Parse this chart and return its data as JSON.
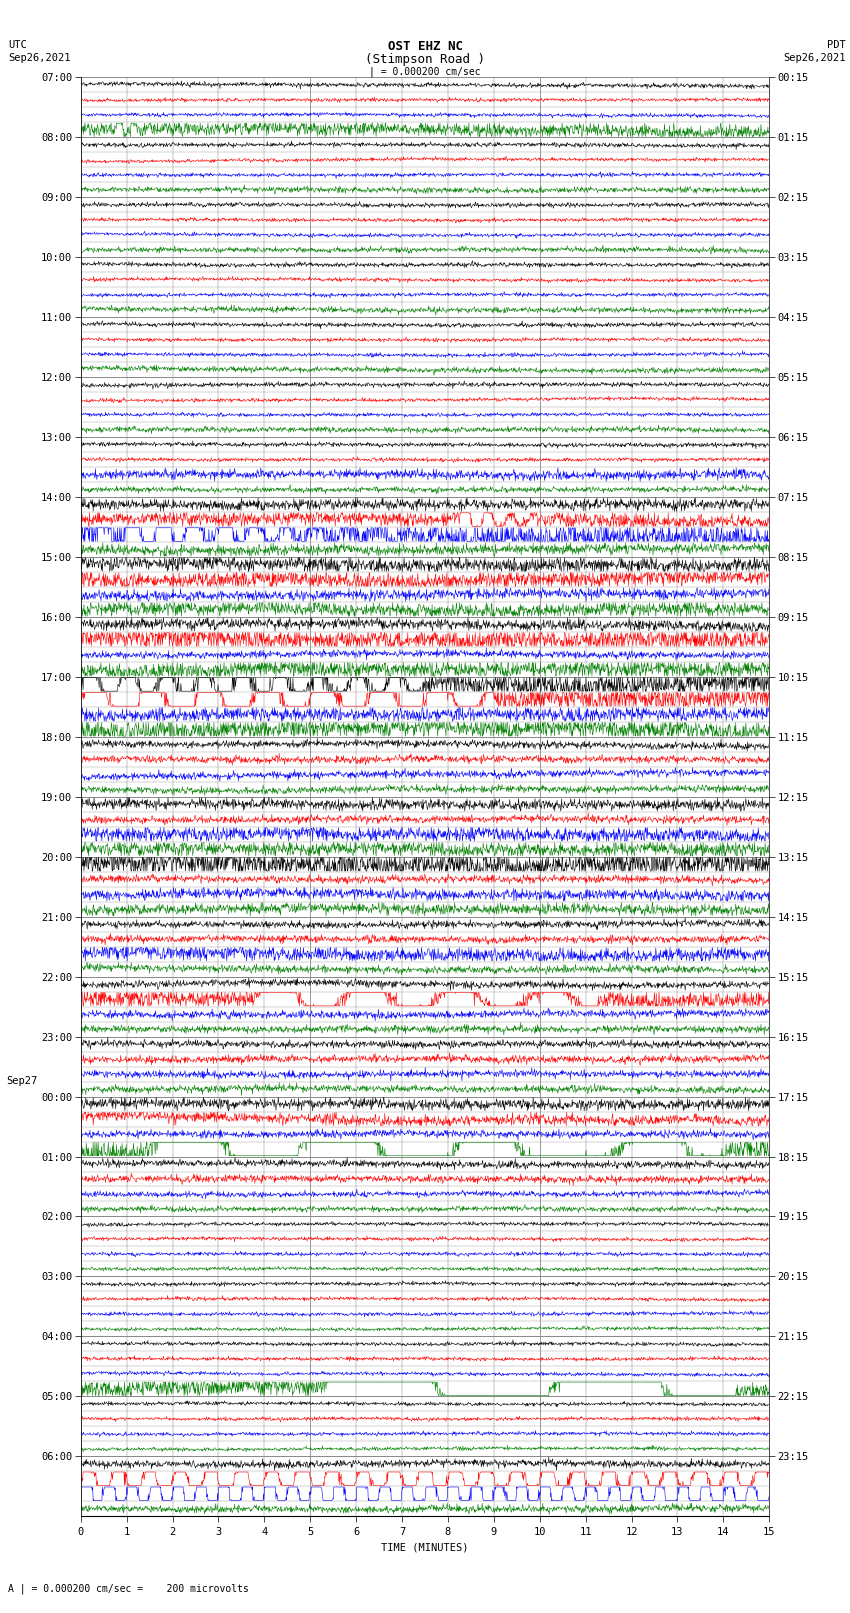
{
  "title_line1": "OST EHZ NC",
  "title_line2": "(Stimpson Road )",
  "title_scale": "| = 0.000200 cm/sec",
  "left_label_top": "UTC",
  "left_label_date": "Sep26,2021",
  "right_label_top": "PDT",
  "right_label_date": "Sep26,2021",
  "xlabel": "TIME (MINUTES)",
  "bottom_note": "A | = 0.000200 cm/sec =    200 microvolts",
  "utc_labels": [
    "07:00",
    "08:00",
    "09:00",
    "10:00",
    "11:00",
    "12:00",
    "13:00",
    "14:00",
    "15:00",
    "16:00",
    "17:00",
    "18:00",
    "19:00",
    "20:00",
    "21:00",
    "22:00",
    "23:00",
    "00:00",
    "01:00",
    "02:00",
    "03:00",
    "04:00",
    "05:00",
    "06:00"
  ],
  "pdt_labels": [
    "00:15",
    "01:15",
    "02:15",
    "03:15",
    "04:15",
    "05:15",
    "06:15",
    "07:15",
    "08:15",
    "09:15",
    "10:15",
    "11:15",
    "12:15",
    "13:15",
    "14:15",
    "15:15",
    "16:15",
    "17:15",
    "18:15",
    "19:15",
    "20:15",
    "21:15",
    "22:15",
    "23:15"
  ],
  "sep27_block": 17,
  "n_hours": 24,
  "traces_per_hour": 4,
  "minutes": 15,
  "colors": [
    "black",
    "red",
    "blue",
    "green"
  ],
  "bg_color": "white",
  "grid_color": "#888888",
  "grid_color_minor": "#cccccc",
  "text_color": "black",
  "title_fontsize": 9,
  "label_fontsize": 7.5,
  "tick_fontsize": 7.5,
  "seis_lw": 0.4,
  "base_amp": 0.06,
  "sample_rate": 100
}
